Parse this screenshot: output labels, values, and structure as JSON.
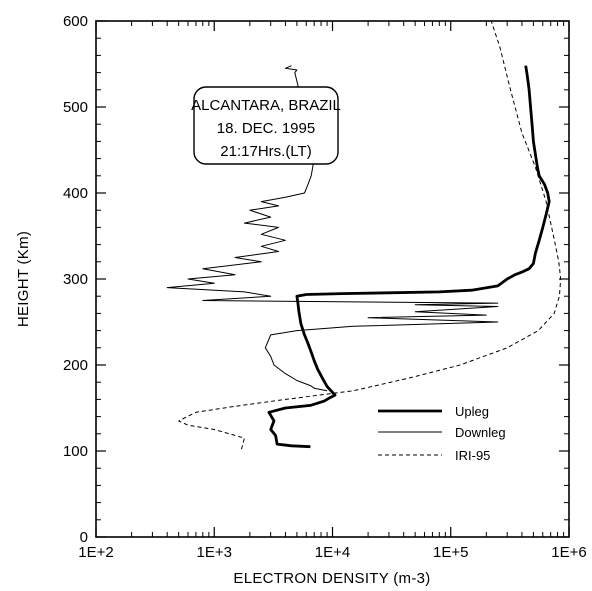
{
  "chart_data": {
    "type": "line",
    "xscale": "log",
    "xlim": [
      100,
      1000000
    ],
    "ylim": [
      0,
      600
    ],
    "xlabel": "ELECTRON DENSITY (m-3)",
    "ylabel": "HEIGHT (Km)",
    "xticks": [
      {
        "value": 100,
        "label": "1E+2"
      },
      {
        "value": 1000,
        "label": "1E+3"
      },
      {
        "value": 10000,
        "label": "1E+4"
      },
      {
        "value": 100000,
        "label": "1E+5"
      },
      {
        "value": 1000000,
        "label": "1E+6"
      }
    ],
    "yticks": [
      0,
      100,
      200,
      300,
      400,
      500,
      600
    ],
    "annotation": [
      "ALCANTARA, BRAZIL",
      "18. DEC. 1995",
      "21:17Hrs.(LT)"
    ],
    "legend_position": "center-right",
    "series": [
      {
        "name": "Upleg",
        "style": "thick",
        "points": [
          [
            6500,
            105
          ],
          [
            4500,
            106
          ],
          [
            3400,
            108
          ],
          [
            3300,
            118
          ],
          [
            3000,
            125
          ],
          [
            3200,
            135
          ],
          [
            2900,
            145
          ],
          [
            4000,
            150
          ],
          [
            6500,
            153
          ],
          [
            8500,
            158
          ],
          [
            9500,
            162
          ],
          [
            10500,
            165
          ],
          [
            9000,
            175
          ],
          [
            8200,
            185
          ],
          [
            7500,
            195
          ],
          [
            7000,
            205
          ],
          [
            6600,
            215
          ],
          [
            6200,
            225
          ],
          [
            5800,
            235
          ],
          [
            5400,
            248
          ],
          [
            5200,
            262
          ],
          [
            5100,
            272
          ],
          [
            5000,
            280
          ],
          [
            6000,
            282
          ],
          [
            12000,
            283
          ],
          [
            30000,
            284
          ],
          [
            80000,
            285
          ],
          [
            150000,
            287
          ],
          [
            250000,
            292
          ],
          [
            300000,
            300
          ],
          [
            350000,
            305
          ],
          [
            400000,
            308
          ],
          [
            460000,
            312
          ],
          [
            500000,
            318
          ],
          [
            520000,
            330
          ],
          [
            560000,
            345
          ],
          [
            600000,
            360
          ],
          [
            640000,
            375
          ],
          [
            680000,
            390
          ],
          [
            660000,
            400
          ],
          [
            620000,
            410
          ],
          [
            560000,
            420
          ],
          [
            540000,
            430
          ],
          [
            520000,
            445
          ],
          [
            500000,
            460
          ],
          [
            490000,
            475
          ],
          [
            480000,
            490
          ],
          [
            470000,
            505
          ],
          [
            460000,
            520
          ],
          [
            450000,
            530
          ],
          [
            440000,
            540
          ],
          [
            430000,
            548
          ]
        ]
      },
      {
        "name": "Downleg",
        "style": "thin",
        "points": [
          [
            4500,
            548
          ],
          [
            4000,
            545
          ],
          [
            5000,
            543
          ],
          [
            4800,
            540
          ],
          [
            5000,
            530
          ],
          [
            5200,
            520
          ],
          [
            5500,
            510
          ],
          [
            5800,
            500
          ],
          [
            6200,
            490
          ],
          [
            6500,
            480
          ],
          [
            7000,
            470
          ],
          [
            7200,
            460
          ],
          [
            7500,
            450
          ],
          [
            7000,
            440
          ],
          [
            6800,
            430
          ],
          [
            6600,
            420
          ],
          [
            6200,
            410
          ],
          [
            5800,
            400
          ],
          [
            4000,
            395
          ],
          [
            2500,
            390
          ],
          [
            3500,
            385
          ],
          [
            2000,
            380
          ],
          [
            3000,
            372
          ],
          [
            1800,
            365
          ],
          [
            3500,
            360
          ],
          [
            2500,
            352
          ],
          [
            4000,
            345
          ],
          [
            2500,
            338
          ],
          [
            3500,
            332
          ],
          [
            1500,
            325
          ],
          [
            2500,
            320
          ],
          [
            800,
            312
          ],
          [
            1500,
            305
          ],
          [
            600,
            300
          ],
          [
            1000,
            295
          ],
          [
            400,
            290
          ],
          [
            1800,
            285
          ],
          [
            3000,
            280
          ],
          [
            800,
            275
          ],
          [
            250000,
            272
          ],
          [
            50000,
            270
          ],
          [
            250000,
            268
          ],
          [
            50000,
            262
          ],
          [
            200000,
            258
          ],
          [
            20000,
            255
          ],
          [
            250000,
            250
          ],
          [
            15000,
            245
          ],
          [
            5000,
            240
          ],
          [
            3000,
            235
          ],
          [
            2700,
            220
          ],
          [
            3000,
            210
          ],
          [
            3200,
            200
          ],
          [
            4000,
            190
          ],
          [
            5000,
            182
          ],
          [
            6500,
            176
          ],
          [
            7000,
            173
          ],
          [
            9000,
            170
          ]
        ]
      },
      {
        "name": "IRI-95",
        "style": "dashed",
        "points": [
          [
            1700,
            102
          ],
          [
            1800,
            115
          ],
          [
            1000,
            125
          ],
          [
            600,
            130
          ],
          [
            500,
            135
          ],
          [
            700,
            145
          ],
          [
            1500,
            152
          ],
          [
            4000,
            160
          ],
          [
            15000,
            170
          ],
          [
            45000,
            185
          ],
          [
            120000,
            200
          ],
          [
            300000,
            220
          ],
          [
            550000,
            240
          ],
          [
            750000,
            260
          ],
          [
            830000,
            280
          ],
          [
            850000,
            300
          ],
          [
            820000,
            320
          ],
          [
            740000,
            350
          ],
          [
            640000,
            390
          ],
          [
            520000,
            430
          ],
          [
            400000,
            470
          ],
          [
            320000,
            520
          ],
          [
            260000,
            570
          ],
          [
            220000,
            600
          ]
        ]
      }
    ]
  },
  "colors": {
    "axis": "#000000",
    "series": "#000000",
    "background": "#ffffff"
  }
}
